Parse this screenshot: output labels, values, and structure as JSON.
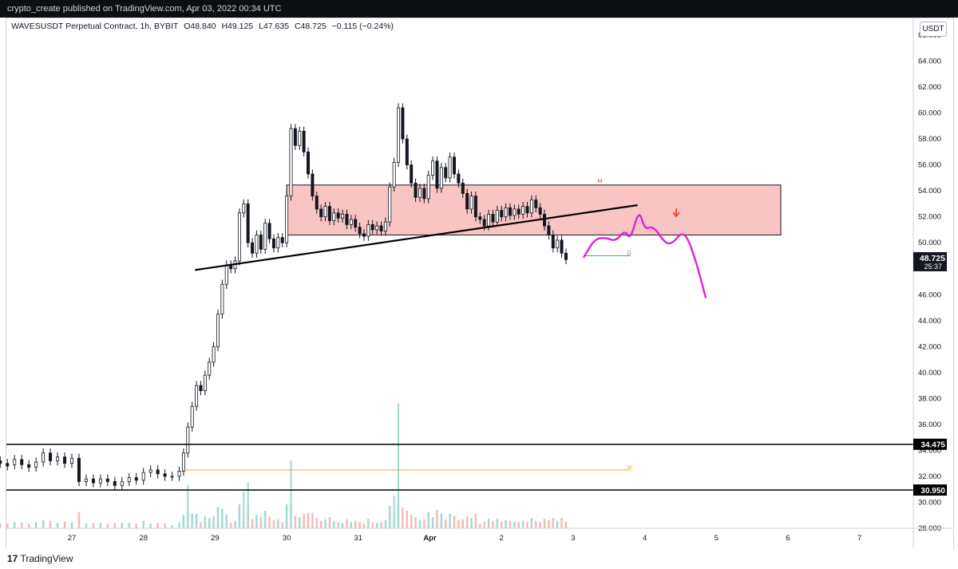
{
  "header": {
    "published_line": "crypto_create published on TradingView.com, Apr 03, 2022 00:34 UTC"
  },
  "legend": {
    "symbol": "WAVESUSDT Perpetual Contract, 1h, BYBIT",
    "open": "O48.840",
    "high": "H49.125",
    "low": "L47.635",
    "close": "C48.725",
    "change": "−0.115 (−0.24%)"
  },
  "currency_label": "USDT",
  "footer": {
    "brand_prefix": "17",
    "brand_name": "TradingView"
  },
  "colors": {
    "candle": "#131722",
    "zone_fill": "#f9c4c4",
    "zone_border": "#131722",
    "forecast": "#e020d8",
    "target_line": "#4caf50",
    "w_line": "#ffa726",
    "arrow": "#f44336",
    "volume_up": "#9fd8d2",
    "volume_down": "#f5b7b5"
  },
  "chart_data": {
    "type": "candlestick",
    "symbol": "WAVESUSDT Perpetual Contract",
    "interval": "1h",
    "exchange": "BYBIT",
    "ylim": [
      28,
      66
    ],
    "y_ticks": [
      "28.000",
      "30.000",
      "32.000",
      "34.000",
      "36.000",
      "38.000",
      "40.000",
      "42.000",
      "44.000",
      "46.000",
      "48.000",
      "50.000",
      "52.000",
      "54.000",
      "56.000",
      "58.000",
      "60.000",
      "62.000",
      "64.000",
      "66.000"
    ],
    "x_ticks": [
      "27",
      "28",
      "29",
      "30",
      "31",
      "Apr",
      "2",
      "3",
      "4",
      "5",
      "6",
      "7"
    ],
    "x_tick_days": [
      27,
      28,
      29,
      30,
      31,
      32,
      33,
      34,
      35,
      36,
      37,
      38
    ],
    "current_price": "48.725",
    "countdown": "25:37",
    "horizontal_levels": [
      {
        "value": 34.475,
        "label": "34.475"
      },
      {
        "value": 30.95,
        "label": "30.950"
      }
    ],
    "w_level": {
      "value": 32.5,
      "label": "W",
      "from_day": 28.55,
      "to_day": 34.8
    },
    "d_level": {
      "value": 49.0,
      "label": "D",
      "from_day": 34.15,
      "to_day": 34.8
    },
    "zone": {
      "label": "M",
      "top": 54.45,
      "bottom": 50.6,
      "from_day": 30.0,
      "to_day": 36.9
    },
    "trendline": {
      "from": [
        28.72,
        47.9
      ],
      "to": [
        34.9,
        52.9
      ]
    },
    "forecast_path": [
      [
        34.15,
        48.9
      ],
      [
        34.3,
        50.3
      ],
      [
        34.45,
        50.4
      ],
      [
        34.6,
        50.1
      ],
      [
        34.72,
        51.0
      ],
      [
        34.8,
        50.2
      ],
      [
        34.92,
        52.6
      ],
      [
        35.0,
        51.0
      ],
      [
        35.12,
        51.3
      ],
      [
        35.28,
        50.0
      ],
      [
        35.38,
        49.9
      ],
      [
        35.55,
        51.0
      ],
      [
        35.7,
        48.9
      ],
      [
        35.85,
        45.8
      ]
    ],
    "arrow_marker": {
      "day": 35.44,
      "value": 52.1
    },
    "candles": [
      [
        26.0,
        33.2,
        33.0
      ],
      [
        26.1,
        33.0,
        32.8
      ],
      [
        26.2,
        32.9,
        33.3
      ],
      [
        26.3,
        33.3,
        32.9
      ],
      [
        26.4,
        32.9,
        32.7
      ],
      [
        26.5,
        32.7,
        33.1
      ],
      [
        26.6,
        33.1,
        33.8
      ],
      [
        26.7,
        33.8,
        33.2
      ],
      [
        26.8,
        33.2,
        33.5
      ],
      [
        26.9,
        33.5,
        33.0
      ],
      [
        27.0,
        33.0,
        33.4
      ],
      [
        27.1,
        33.4,
        31.6
      ],
      [
        27.2,
        31.6,
        31.8
      ],
      [
        27.3,
        31.8,
        31.5
      ],
      [
        27.4,
        31.5,
        31.8
      ],
      [
        27.5,
        31.8,
        31.6
      ],
      [
        27.6,
        31.6,
        31.3
      ],
      [
        27.7,
        31.3,
        31.6
      ],
      [
        27.8,
        31.6,
        31.9
      ],
      [
        27.9,
        31.9,
        31.7
      ],
      [
        28.0,
        31.7,
        32.3
      ],
      [
        28.1,
        32.3,
        32.5
      ],
      [
        28.2,
        32.5,
        32.2
      ],
      [
        28.3,
        32.2,
        32.0
      ],
      [
        28.4,
        32.0,
        32.0
      ],
      [
        28.5,
        32.0,
        32.4
      ],
      [
        28.56,
        32.4,
        33.8
      ],
      [
        28.62,
        33.8,
        35.8
      ],
      [
        28.68,
        35.8,
        37.4
      ],
      [
        28.74,
        37.4,
        39.0
      ],
      [
        28.8,
        39.0,
        38.6
      ],
      [
        28.86,
        38.6,
        39.8
      ],
      [
        28.92,
        39.8,
        40.8
      ],
      [
        28.98,
        40.8,
        42.0
      ],
      [
        29.04,
        42.0,
        44.5
      ],
      [
        29.1,
        44.5,
        46.8
      ],
      [
        29.16,
        46.8,
        48.3
      ],
      [
        29.22,
        48.3,
        48.0
      ],
      [
        29.28,
        48.0,
        48.6
      ],
      [
        29.34,
        48.6,
        52.3
      ],
      [
        29.4,
        52.3,
        53.0
      ],
      [
        29.46,
        53.0,
        50.0
      ],
      [
        29.52,
        50.0,
        49.2
      ],
      [
        29.58,
        49.2,
        50.6
      ],
      [
        29.64,
        50.6,
        49.5
      ],
      [
        29.7,
        49.5,
        51.5
      ],
      [
        29.76,
        51.5,
        50.3
      ],
      [
        29.82,
        50.3,
        49.6
      ],
      [
        29.88,
        49.6,
        50.4
      ],
      [
        29.94,
        50.4,
        50.0
      ],
      [
        30.0,
        50.0,
        53.6
      ],
      [
        30.06,
        53.6,
        58.8
      ],
      [
        30.12,
        58.8,
        57.5
      ],
      [
        30.18,
        57.5,
        58.6
      ],
      [
        30.24,
        58.6,
        57.0
      ],
      [
        30.3,
        57.0,
        55.3
      ],
      [
        30.36,
        55.3,
        53.6
      ],
      [
        30.42,
        53.6,
        52.6
      ],
      [
        30.48,
        52.6,
        52.0
      ],
      [
        30.54,
        52.0,
        52.8
      ],
      [
        30.6,
        52.8,
        51.7
      ],
      [
        30.66,
        51.7,
        52.3
      ],
      [
        30.72,
        52.3,
        51.9
      ],
      [
        30.78,
        51.9,
        52.2
      ],
      [
        30.84,
        52.2,
        51.4
      ],
      [
        30.9,
        51.4,
        51.8
      ],
      [
        30.96,
        51.8,
        51.2
      ],
      [
        31.02,
        51.2,
        50.7
      ],
      [
        31.08,
        50.7,
        50.5
      ],
      [
        31.14,
        50.5,
        51.4
      ],
      [
        31.2,
        51.4,
        51.0
      ],
      [
        31.26,
        51.0,
        51.3
      ],
      [
        31.32,
        51.3,
        50.9
      ],
      [
        31.38,
        50.9,
        51.6
      ],
      [
        31.44,
        51.6,
        54.3
      ],
      [
        31.5,
        54.3,
        56.2
      ],
      [
        31.56,
        56.2,
        60.4
      ],
      [
        31.62,
        60.4,
        58.0
      ],
      [
        31.68,
        58.0,
        56.0
      ],
      [
        31.74,
        56.0,
        54.6
      ],
      [
        31.8,
        54.6,
        53.5
      ],
      [
        31.86,
        53.5,
        54.2
      ],
      [
        31.92,
        54.2,
        53.4
      ],
      [
        31.98,
        53.4,
        55.2
      ],
      [
        32.04,
        55.2,
        56.3
      ],
      [
        32.1,
        56.3,
        54.2
      ],
      [
        32.16,
        54.2,
        55.8
      ],
      [
        32.22,
        55.8,
        55.0
      ],
      [
        32.28,
        55.0,
        56.6
      ],
      [
        32.34,
        56.6,
        55.3
      ],
      [
        32.4,
        55.3,
        54.6
      ],
      [
        32.46,
        54.6,
        53.8
      ],
      [
        32.52,
        53.8,
        52.6
      ],
      [
        32.58,
        52.6,
        53.6
      ],
      [
        32.64,
        53.6,
        52.0
      ],
      [
        32.7,
        52.0,
        51.8
      ],
      [
        32.76,
        51.8,
        51.3
      ],
      [
        32.82,
        51.3,
        52.2
      ],
      [
        32.88,
        52.2,
        51.6
      ],
      [
        32.94,
        51.6,
        52.5
      ],
      [
        33.0,
        52.5,
        52.0
      ],
      [
        33.06,
        52.0,
        52.7
      ],
      [
        33.12,
        52.7,
        52.1
      ],
      [
        33.18,
        52.1,
        52.6
      ],
      [
        33.24,
        52.6,
        52.2
      ],
      [
        33.3,
        52.2,
        52.8
      ],
      [
        33.36,
        52.8,
        52.3
      ],
      [
        33.42,
        52.3,
        53.3
      ],
      [
        33.48,
        53.3,
        52.7
      ],
      [
        33.54,
        52.7,
        52.2
      ],
      [
        33.6,
        52.2,
        51.3
      ],
      [
        33.66,
        51.3,
        50.6
      ],
      [
        33.72,
        50.6,
        49.6
      ],
      [
        33.78,
        49.6,
        50.2
      ],
      [
        33.84,
        50.2,
        49.2
      ],
      [
        33.9,
        49.2,
        48.7
      ]
    ],
    "volume_spikes": [
      [
        28.62,
        3.2
      ],
      [
        29.4,
        2.7
      ],
      [
        29.46,
        3.4
      ],
      [
        30.06,
        5.0
      ],
      [
        31.56,
        9.2
      ],
      [
        31.5,
        2.4
      ]
    ]
  }
}
